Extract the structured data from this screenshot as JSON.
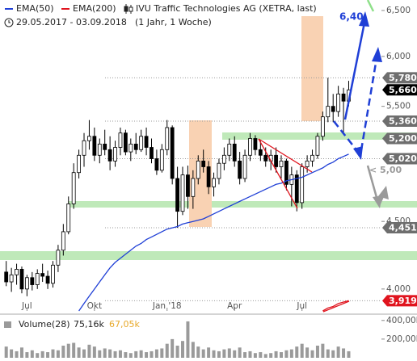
{
  "chart_data": {
    "type": "candlestick",
    "title": "IVU Traffic Technologies  AG (XETRA, last)",
    "period": "29.05.2017 - 03.09.2018",
    "interval": "(1 Jahr, 1 Woche)",
    "log_scale": true,
    "up_color": "#ffffff",
    "down_color": "#000000",
    "xlim": [
      -1.2,
      72
    ],
    "ylim": [
      3850,
      6620
    ],
    "yticks": [
      {
        "value": 6500,
        "label": "6,500"
      },
      {
        "value": 6000,
        "label": "6,000"
      },
      {
        "value": 5500,
        "label": "5,500"
      },
      {
        "value": 4500,
        "label": "4,500"
      },
      {
        "value": 4000,
        "label": "4,000"
      }
    ],
    "xticks": [
      {
        "value": 4,
        "label": "Jul"
      },
      {
        "value": 17,
        "label": "Okt"
      },
      {
        "value": 31,
        "label": "Jan '18"
      },
      {
        "value": 44,
        "label": "Apr"
      },
      {
        "value": 57,
        "label": "Jul"
      }
    ],
    "ohlc": [
      [
        4120,
        4200,
        4020,
        4050
      ],
      [
        4050,
        4150,
        3980,
        4100
      ],
      [
        4100,
        4180,
        4030,
        4140
      ],
      [
        4140,
        4160,
        3970,
        4000
      ],
      [
        4000,
        4100,
        3950,
        4080
      ],
      [
        4080,
        4120,
        3990,
        4030
      ],
      [
        4030,
        4140,
        4000,
        4110
      ],
      [
        4110,
        4180,
        4050,
        4090
      ],
      [
        4090,
        4130,
        4000,
        4040
      ],
      [
        4040,
        4200,
        4010,
        4170
      ],
      [
        4170,
        4320,
        4120,
        4280
      ],
      [
        4280,
        4480,
        4240,
        4420
      ],
      [
        4420,
        4700,
        4400,
        4640
      ],
      [
        4640,
        4980,
        4600,
        4900
      ],
      [
        4900,
        5100,
        4850,
        5050
      ],
      [
        5050,
        5250,
        4950,
        5180
      ],
      [
        5180,
        5370,
        5100,
        5220
      ],
      [
        5220,
        5300,
        5000,
        5050
      ],
      [
        5050,
        5200,
        4980,
        5150
      ],
      [
        5150,
        5280,
        5050,
        5100
      ],
      [
        5100,
        5220,
        4920,
        5000
      ],
      [
        5000,
        5180,
        4950,
        5120
      ],
      [
        5120,
        5300,
        5050,
        5250
      ],
      [
        5250,
        5280,
        5050,
        5080
      ],
      [
        5080,
        5200,
        5000,
        5150
      ],
      [
        5150,
        5250,
        5060,
        5100
      ],
      [
        5100,
        5280,
        5080,
        5220
      ],
      [
        5220,
        5300,
        5050,
        5120
      ],
      [
        5120,
        5200,
        4980,
        5020
      ],
      [
        5020,
        5100,
        4880,
        4920
      ],
      [
        4920,
        5150,
        4900,
        5100
      ],
      [
        5100,
        5370,
        5050,
        5300
      ],
      [
        5300,
        5320,
        4800,
        4850
      ],
      [
        4850,
        4950,
        4450,
        4580
      ],
      [
        4580,
        4950,
        4550,
        4880
      ],
      [
        4880,
        4960,
        4600,
        4700
      ],
      [
        4700,
        4920,
        4600,
        4850
      ],
      [
        4850,
        5050,
        4800,
        5000
      ],
      [
        5000,
        5100,
        4900,
        4950
      ],
      [
        4950,
        5000,
        4720,
        4780
      ],
      [
        4780,
        4900,
        4700,
        4850
      ],
      [
        4850,
        5020,
        4800,
        4980
      ],
      [
        4980,
        5120,
        4920,
        5050
      ],
      [
        5050,
        5200,
        5000,
        5150
      ],
      [
        5150,
        5220,
        4950,
        5000
      ],
      [
        5000,
        5080,
        4800,
        4850
      ],
      [
        4850,
        5100,
        4820,
        5050
      ],
      [
        5050,
        5250,
        5000,
        5200
      ],
      [
        5200,
        5230,
        5050,
        5100
      ],
      [
        5100,
        5180,
        5000,
        5050
      ],
      [
        5050,
        5120,
        4950,
        5000
      ],
      [
        5000,
        5100,
        4920,
        5050
      ],
      [
        5050,
        5120,
        4900,
        4950
      ],
      [
        4950,
        5050,
        4850,
        5000
      ],
      [
        5000,
        5020,
        4750,
        4800
      ],
      [
        4800,
        4950,
        4620,
        4880
      ],
      [
        4880,
        4920,
        4580,
        4650
      ],
      [
        4650,
        4980,
        4600,
        4950
      ],
      [
        4950,
        5050,
        4900,
        5000
      ],
      [
        5000,
        5100,
        4950,
        5050
      ],
      [
        5050,
        5250,
        5020,
        5220
      ],
      [
        5220,
        5450,
        5180,
        5400
      ],
      [
        5400,
        5780,
        5350,
        5500
      ],
      [
        5500,
        5620,
        5350,
        5450
      ],
      [
        5450,
        5700,
        5400,
        5620
      ],
      [
        5620,
        5680,
        5250,
        5550
      ],
      [
        5550,
        5750,
        5500,
        5660
      ]
    ],
    "series": [
      {
        "name": "EMA(50)",
        "color": "#1f3fd6",
        "values": [
          null,
          null,
          null,
          null,
          null,
          null,
          null,
          null,
          null,
          null,
          null,
          null,
          null,
          null,
          3850,
          3900,
          3950,
          4000,
          4050,
          4100,
          4150,
          4190,
          4220,
          4250,
          4280,
          4310,
          4330,
          4360,
          4380,
          4400,
          4420,
          4440,
          4450,
          4460,
          4480,
          4490,
          4500,
          4510,
          4520,
          4540,
          4560,
          4580,
          4600,
          4620,
          4640,
          4660,
          4680,
          4700,
          4720,
          4740,
          4760,
          4780,
          4800,
          4810,
          4830,
          4840,
          4850,
          4860,
          4880,
          4900,
          4920,
          4940,
          4970,
          4990,
          5020,
          5040,
          5060
        ]
      },
      {
        "name": "EMA(200)",
        "color": "#e0141e",
        "values": [
          null,
          null,
          null,
          null,
          null,
          null,
          null,
          null,
          null,
          null,
          null,
          null,
          null,
          null,
          null,
          null,
          null,
          null,
          null,
          null,
          null,
          null,
          null,
          null,
          null,
          null,
          null,
          null,
          null,
          null,
          null,
          null,
          null,
          null,
          null,
          null,
          null,
          null,
          null,
          null,
          null,
          null,
          null,
          null,
          null,
          null,
          null,
          null,
          null,
          null,
          null,
          null,
          null,
          null,
          null,
          null,
          null,
          null,
          null,
          null,
          null,
          3850,
          3870,
          3880,
          3900,
          3910,
          3920
        ]
      }
    ],
    "price_labels": [
      {
        "value": 5780,
        "label": "5,780",
        "color": "#6e6e6e"
      },
      {
        "value": 5660,
        "label": "5,660",
        "color": "#000000"
      },
      {
        "value": 5360,
        "label": "5,360",
        "color": "#6e6e6e"
      },
      {
        "value": 5200,
        "label": "5,200",
        "color": "#6e6e6e"
      },
      {
        "value": 5020,
        "label": "5,020",
        "color": "#6e6e6e"
      },
      {
        "value": 4451,
        "label": "4,451",
        "color": "#6e6e6e"
      },
      {
        "value": 3919,
        "label": "3,919",
        "color": "#e0141e"
      }
    ],
    "annotations": [
      "6,40",
      "< 5,00"
    ],
    "volume": {
      "name": "Volume(28)",
      "average_1": "75,16k",
      "average_2": "67,05k",
      "color": "#9a9a9a",
      "ylim": [
        0,
        450000
      ],
      "yticks": [
        {
          "value": 400000,
          "label": "400,00k"
        },
        {
          "value": 200000,
          "label": "200,00k"
        }
      ],
      "values": [
        120000,
        90000,
        70000,
        110000,
        60000,
        80000,
        50000,
        70000,
        60000,
        90000,
        80000,
        130000,
        150000,
        160000,
        110000,
        90000,
        140000,
        120000,
        80000,
        100000,
        90000,
        70000,
        80000,
        60000,
        50000,
        70000,
        80000,
        60000,
        70000,
        90000,
        100000,
        150000,
        200000,
        130000,
        180000,
        390000,
        170000,
        120000,
        90000,
        110000,
        80000,
        70000,
        90000,
        100000,
        80000,
        110000,
        60000,
        70000,
        50000,
        60000,
        40000,
        50000,
        70000,
        60000,
        80000,
        90000,
        120000,
        150000,
        110000,
        80000,
        130000,
        150000,
        90000,
        80000,
        120000,
        100000,
        70000
      ]
    }
  }
}
